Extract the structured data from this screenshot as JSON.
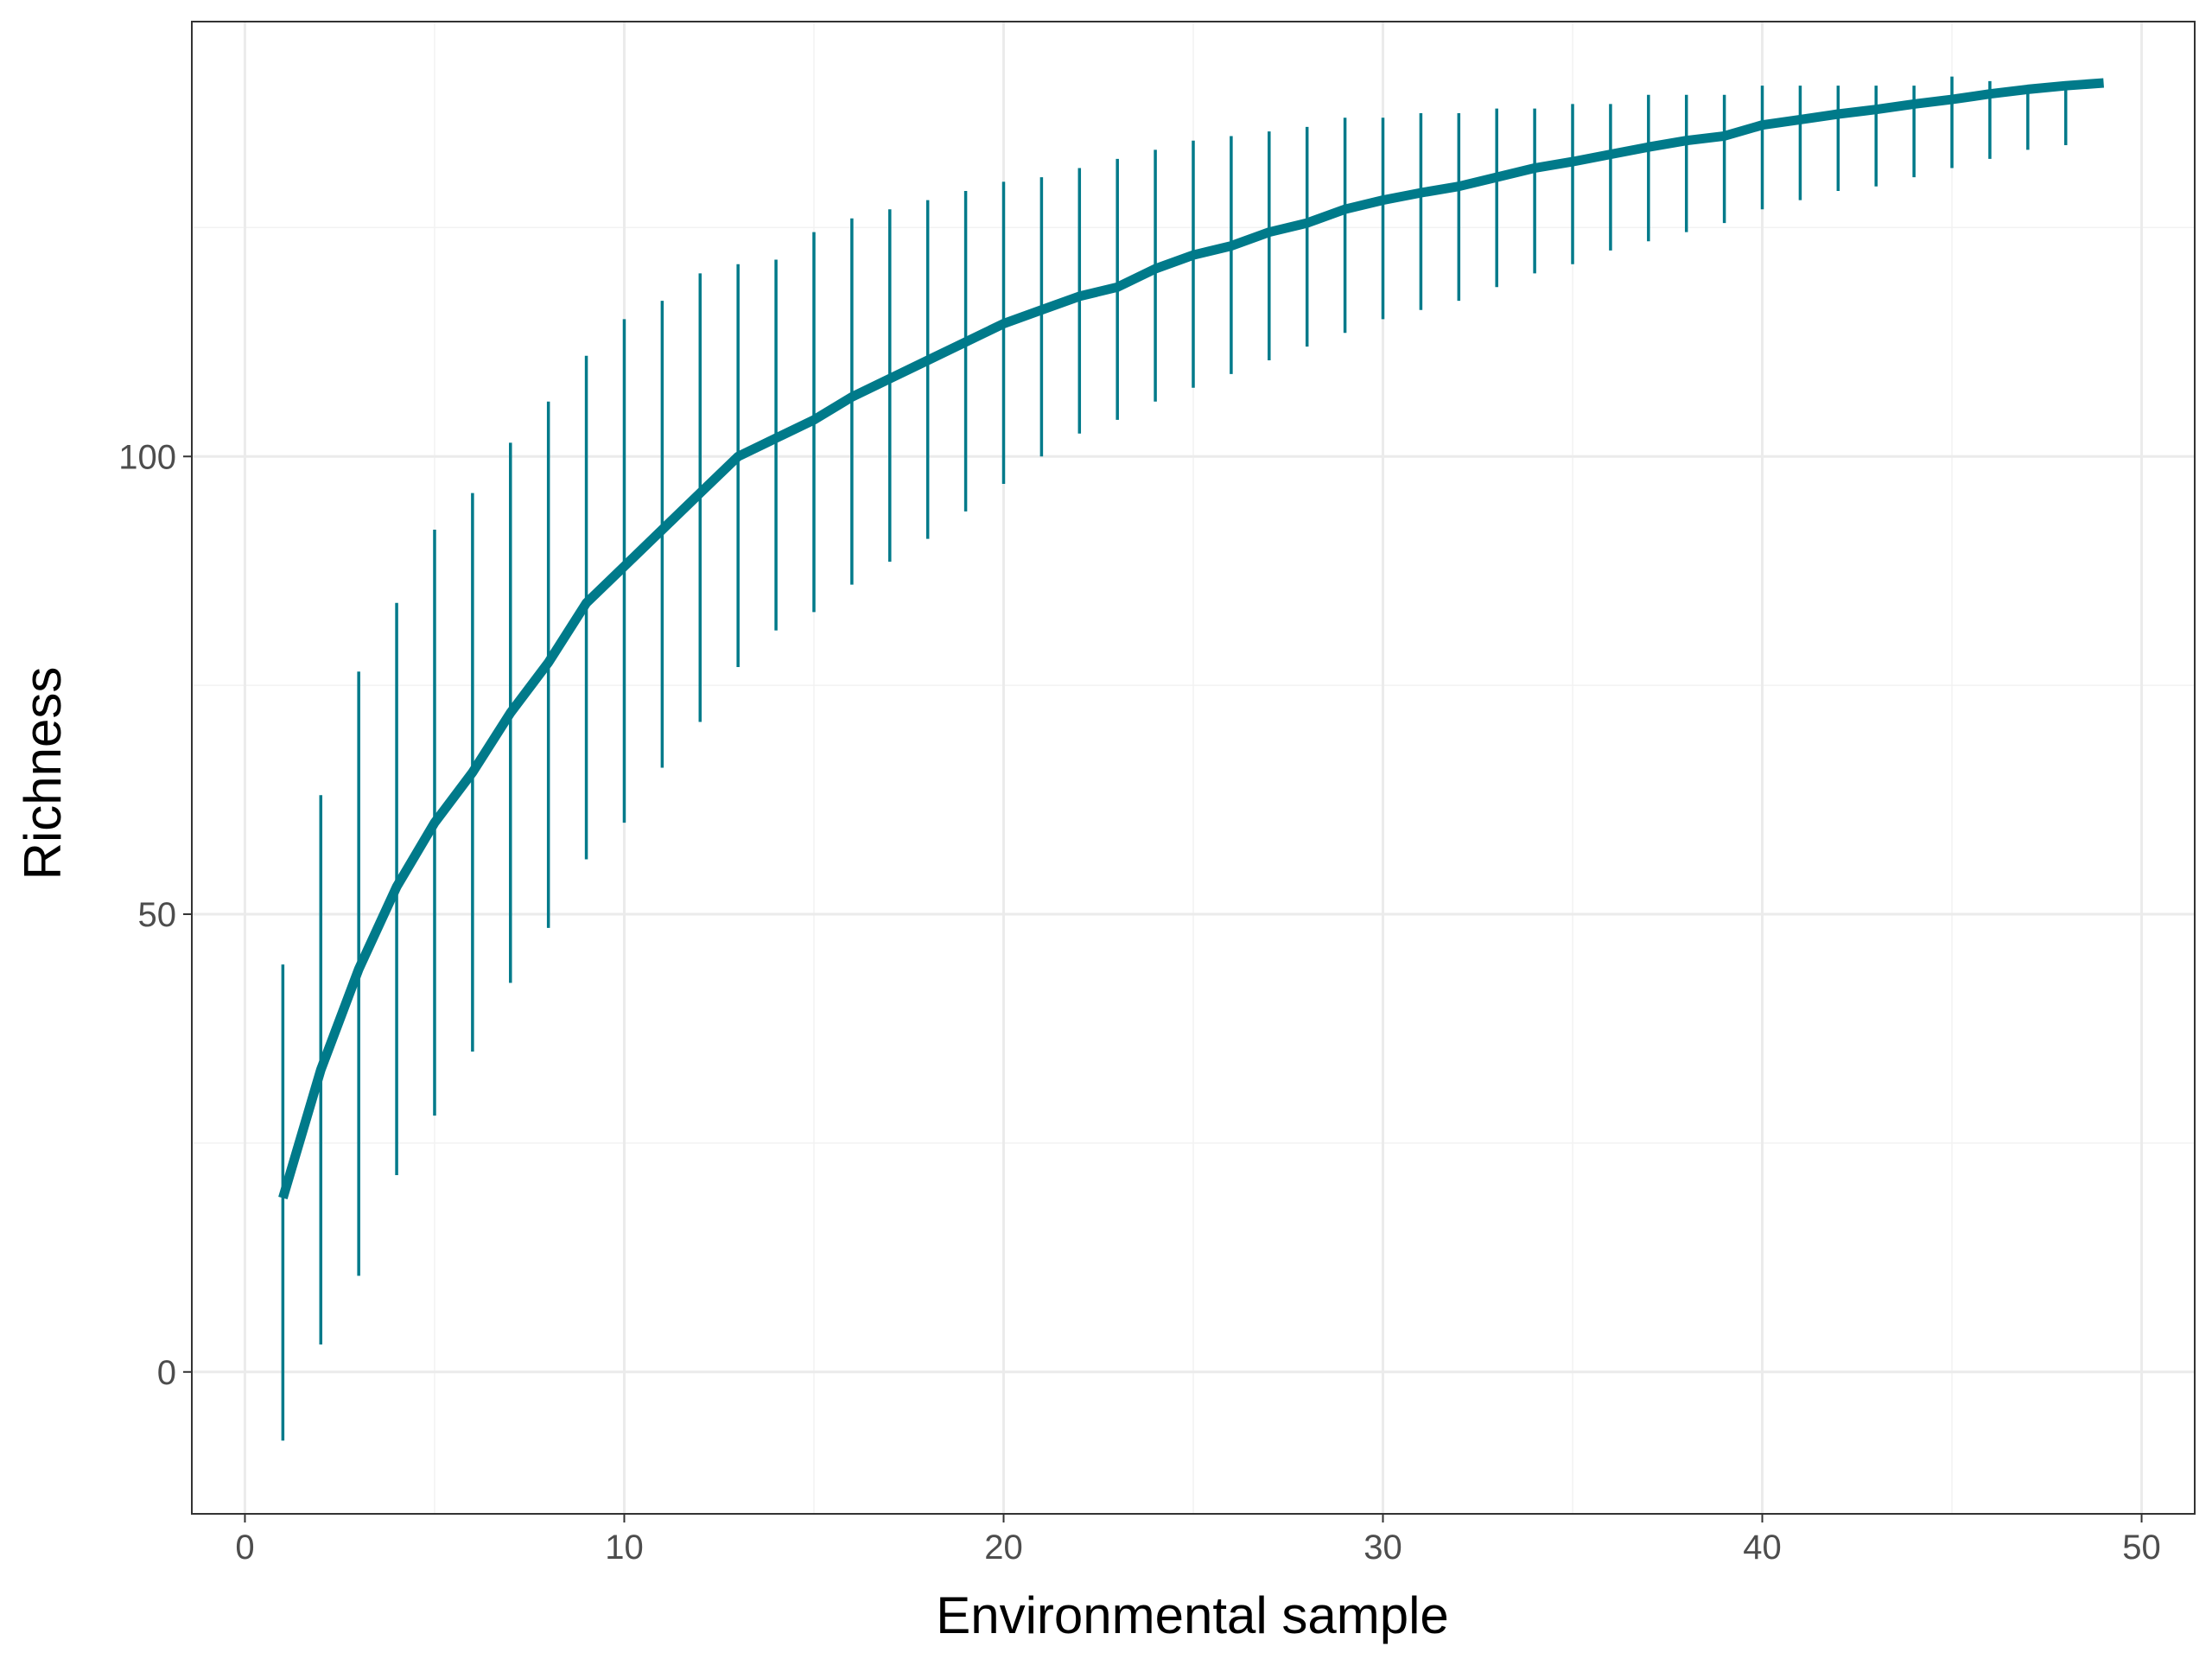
{
  "chart_data": {
    "type": "line",
    "title": "",
    "xlabel": "Environmental sample",
    "ylabel": "Richness",
    "xlim": [
      -1.4,
      51.4
    ],
    "ylim": [
      -15.5,
      147.5
    ],
    "x_ticks": [
      0,
      10,
      20,
      30,
      40,
      50
    ],
    "y_ticks": [
      0,
      50,
      100
    ],
    "x_tick_labels": [
      "0",
      "10",
      "20",
      "30",
      "40",
      "50"
    ],
    "y_tick_labels": [
      "0",
      "50",
      "100"
    ],
    "grid": true,
    "legend": "none",
    "colors": {
      "line": "#007a8a",
      "error_bars": "#007a8a",
      "grid_major": "#ebebeb",
      "grid_minor": "#f2f2f2",
      "panel_border": "#333333"
    },
    "series": [
      {
        "x": [
          1,
          2,
          3,
          4,
          5,
          6,
          7,
          8,
          9,
          10,
          11,
          12,
          13,
          14,
          15,
          16,
          17,
          18,
          19,
          20,
          21,
          22,
          23,
          24,
          25,
          26,
          27,
          28,
          29,
          30,
          31,
          32,
          33,
          34,
          35,
          36,
          37,
          38,
          39,
          40,
          41,
          42,
          43,
          44,
          45,
          46,
          47,
          48,
          49
        ],
        "y": [
          19,
          33,
          44,
          53,
          60,
          65.5,
          72,
          77.5,
          84,
          88,
          92,
          96,
          100,
          102,
          104,
          106.5,
          108.5,
          110.5,
          112.5,
          114.5,
          116,
          117.5,
          118.5,
          120.5,
          122,
          123,
          124.5,
          125.5,
          127,
          128,
          128.8,
          129.5,
          130.5,
          131.5,
          132.2,
          133,
          133.8,
          134.5,
          135,
          136.2,
          136.8,
          137.4,
          137.9,
          138.5,
          139,
          139.6,
          140.1,
          140.5,
          140.8
        ],
        "lower": [
          -7.5,
          3,
          10.5,
          21.5,
          28,
          35,
          42.5,
          48.5,
          56,
          60,
          66,
          71,
          77,
          81,
          83,
          86,
          88.5,
          91,
          94,
          97,
          100,
          102.5,
          104,
          106,
          107.5,
          109,
          110.5,
          112,
          113.5,
          115,
          116,
          117,
          118.5,
          120,
          121,
          122.5,
          123.5,
          124.5,
          125.5,
          127,
          128,
          129,
          129.5,
          130.5,
          131.5,
          132.5,
          133.5,
          134,
          140.8
        ],
        "upper": [
          44.5,
          63,
          76.5,
          84,
          92,
          96,
          101.5,
          106,
          111,
          115,
          117,
          120,
          121,
          121.5,
          124.5,
          126,
          127,
          128,
          129,
          130,
          130.5,
          131.5,
          132.5,
          133.5,
          134.5,
          135,
          135.5,
          136,
          137,
          137,
          137.5,
          137.5,
          138,
          138,
          138.5,
          138.5,
          139.5,
          139.5,
          139.5,
          140.5,
          140.5,
          140.5,
          140.5,
          140.5,
          141.5,
          141,
          140.5,
          140,
          140.8
        ]
      }
    ]
  }
}
